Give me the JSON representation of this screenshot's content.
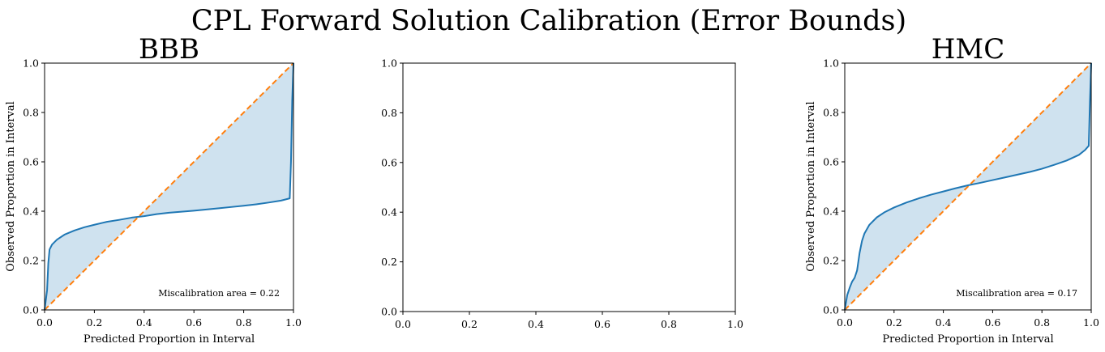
{
  "figure": {
    "suptitle": "CPL Forward Solution Calibration (Error Bounds)"
  },
  "colors": {
    "curve": "#1f77b4",
    "fill": "#cfe2ef",
    "ideal": "#ff7f0e"
  },
  "chart_data": [
    {
      "type": "area",
      "title": "BBB",
      "xlabel": "Predicted Proportion in Interval",
      "ylabel": "Observed Proportion in Interval",
      "xlim": [
        0.0,
        1.0
      ],
      "ylim": [
        0.0,
        1.0
      ],
      "xticks": [
        "0.0",
        "0.2",
        "0.4",
        "0.6",
        "0.8",
        "1.0"
      ],
      "yticks": [
        "0.0",
        "0.2",
        "0.4",
        "0.6",
        "0.8",
        "1.0"
      ],
      "grid": false,
      "annotation": "Miscalibration area = 0.22",
      "series": [
        {
          "x": [
            0.0,
            0.01,
            0.015,
            0.02,
            0.03,
            0.05,
            0.08,
            0.12,
            0.16,
            0.2,
            0.25,
            0.3,
            0.35,
            0.4,
            0.45,
            0.5,
            0.55,
            0.6,
            0.65,
            0.7,
            0.75,
            0.8,
            0.85,
            0.9,
            0.95,
            0.985,
            0.99,
            0.995,
            1.0
          ],
          "y": [
            0.0,
            0.08,
            0.19,
            0.245,
            0.265,
            0.285,
            0.305,
            0.322,
            0.335,
            0.345,
            0.357,
            0.365,
            0.374,
            0.38,
            0.388,
            0.394,
            0.398,
            0.402,
            0.407,
            0.412,
            0.417,
            0.422,
            0.428,
            0.435,
            0.443,
            0.452,
            0.6,
            0.85,
            1.0
          ]
        },
        {
          "x": [
            0.0,
            1.0
          ],
          "y": [
            0.0,
            1.0
          ],
          "style": "dashed"
        }
      ]
    },
    {
      "type": "line",
      "title": "",
      "xlabel": "",
      "ylabel": "",
      "xlim": [
        0.0,
        1.0
      ],
      "ylim": [
        0.0,
        1.0
      ],
      "xticks": [
        "0.0",
        "0.2",
        "0.4",
        "0.6",
        "0.8",
        "1.0"
      ],
      "yticks": [
        "0.0",
        "0.2",
        "0.4",
        "0.6",
        "0.8",
        "1.0"
      ],
      "grid": false,
      "annotation": "",
      "series": []
    },
    {
      "type": "area",
      "title": "HMC",
      "xlabel": "Predicted Proportion in Interval",
      "ylabel": "Observed Proportion in Interval",
      "xlim": [
        0.0,
        1.0
      ],
      "ylim": [
        0.0,
        1.0
      ],
      "xticks": [
        "0.0",
        "0.2",
        "0.4",
        "0.6",
        "0.8",
        "1.0"
      ],
      "yticks": [
        "0.0",
        "0.2",
        "0.4",
        "0.6",
        "0.8",
        "1.0"
      ],
      "grid": false,
      "annotation": "Miscalibration area = 0.17",
      "series": [
        {
          "x": [
            0.0,
            0.01,
            0.02,
            0.03,
            0.04,
            0.05,
            0.06,
            0.07,
            0.08,
            0.1,
            0.13,
            0.16,
            0.2,
            0.25,
            0.3,
            0.35,
            0.4,
            0.45,
            0.5,
            0.55,
            0.6,
            0.65,
            0.7,
            0.75,
            0.8,
            0.85,
            0.9,
            0.95,
            0.975,
            0.99,
            0.995,
            1.0
          ],
          "y": [
            0.0,
            0.06,
            0.09,
            0.115,
            0.13,
            0.16,
            0.23,
            0.28,
            0.31,
            0.345,
            0.375,
            0.395,
            0.415,
            0.435,
            0.452,
            0.467,
            0.48,
            0.493,
            0.505,
            0.515,
            0.526,
            0.537,
            0.548,
            0.559,
            0.572,
            0.588,
            0.605,
            0.628,
            0.648,
            0.665,
            0.85,
            1.0
          ]
        },
        {
          "x": [
            0.0,
            1.0
          ],
          "y": [
            0.0,
            1.0
          ],
          "style": "dashed"
        }
      ]
    }
  ]
}
